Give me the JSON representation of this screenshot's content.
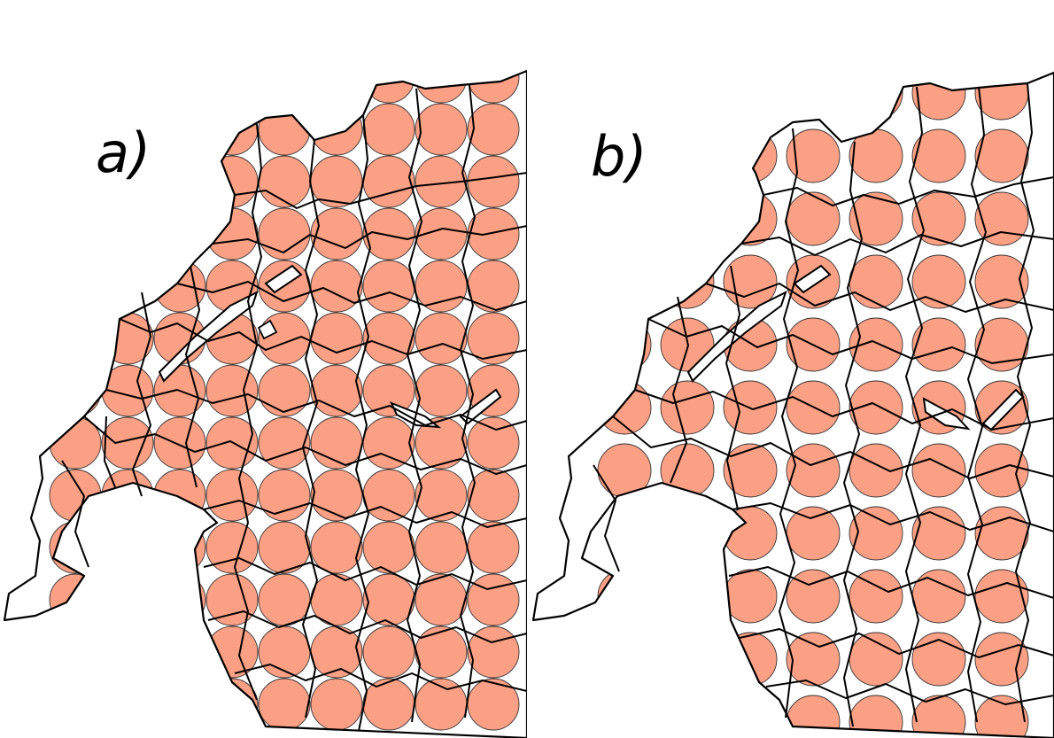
{
  "colors": {
    "circle_fill": "#fca085",
    "circle_stroke": "#333333",
    "boundary": "#000000",
    "background": "#ffffff"
  },
  "panels": [
    {
      "id": "a",
      "label": "a)",
      "grid": {
        "x_start": 85,
        "y_start": 87,
        "spacing": 59,
        "radius": 29,
        "cols": 9,
        "rows": 13
      }
    },
    {
      "id": "b",
      "label": "b)",
      "grid": {
        "x_start": 110,
        "y_start": 105,
        "spacing": 71,
        "radius": 30,
        "cols": 7,
        "rows": 11
      }
    }
  ]
}
